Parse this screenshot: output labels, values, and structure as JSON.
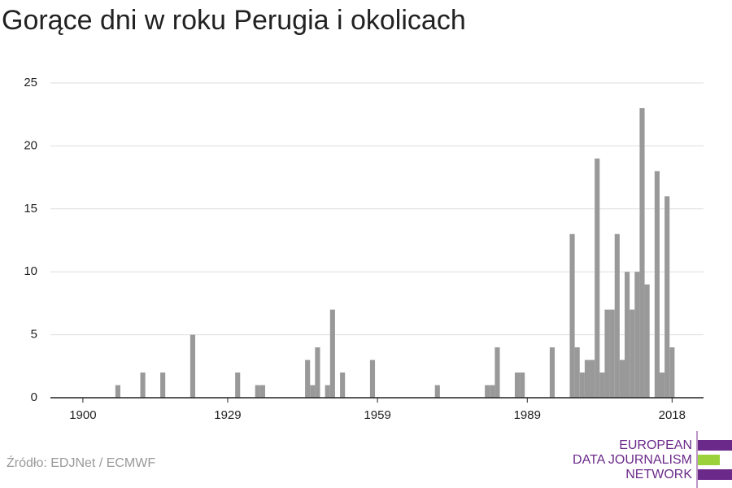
{
  "chart_data": {
    "type": "bar",
    "title": "Gorące dni w roku Perugia i okolicach",
    "source": "Źródło: EDJNet / ECMWF",
    "logo": [
      "EUROPEAN",
      "DATA JOURNALISM",
      "NETWORK"
    ],
    "x": [
      1900,
      1901,
      1902,
      1903,
      1904,
      1905,
      1906,
      1907,
      1908,
      1909,
      1910,
      1911,
      1912,
      1913,
      1914,
      1915,
      1916,
      1917,
      1918,
      1919,
      1920,
      1921,
      1922,
      1923,
      1924,
      1925,
      1926,
      1927,
      1928,
      1929,
      1930,
      1931,
      1932,
      1933,
      1934,
      1935,
      1936,
      1937,
      1938,
      1939,
      1940,
      1941,
      1942,
      1943,
      1944,
      1945,
      1946,
      1947,
      1948,
      1949,
      1950,
      1951,
      1952,
      1953,
      1954,
      1955,
      1956,
      1957,
      1958,
      1959,
      1960,
      1961,
      1962,
      1963,
      1964,
      1965,
      1966,
      1967,
      1968,
      1969,
      1970,
      1971,
      1972,
      1973,
      1974,
      1975,
      1976,
      1977,
      1978,
      1979,
      1980,
      1981,
      1982,
      1983,
      1984,
      1985,
      1986,
      1987,
      1988,
      1989,
      1990,
      1991,
      1992,
      1993,
      1994,
      1995,
      1996,
      1997,
      1998,
      1999,
      2000,
      2001,
      2002,
      2003,
      2004,
      2005,
      2006,
      2007,
      2008,
      2009,
      2010,
      2011,
      2012,
      2013,
      2014,
      2015,
      2016,
      2017,
      2018
    ],
    "values": [
      0,
      0,
      0,
      0,
      0,
      0,
      0,
      1,
      0,
      0,
      0,
      0,
      2,
      0,
      0,
      0,
      2,
      0,
      0,
      0,
      0,
      0,
      5,
      0,
      0,
      0,
      0,
      0,
      0,
      0,
      0,
      2,
      0,
      0,
      0,
      1,
      1,
      0,
      0,
      0,
      0,
      0,
      0,
      0,
      0,
      3,
      1,
      4,
      0,
      1,
      7,
      0,
      2,
      0,
      0,
      0,
      0,
      0,
      3,
      0,
      0,
      0,
      0,
      0,
      0,
      0,
      0,
      0,
      0,
      0,
      0,
      1,
      0,
      0,
      0,
      0,
      0,
      0,
      0,
      0,
      0,
      1,
      1,
      4,
      0,
      0,
      0,
      2,
      2,
      0,
      0,
      0,
      0,
      0,
      4,
      0,
      0,
      0,
      13,
      4,
      2,
      3,
      3,
      19,
      2,
      7,
      7,
      13,
      3,
      10,
      7,
      10,
      23,
      9,
      0,
      18,
      2,
      16,
      4
    ],
    "color": "#999999",
    "xlim": [
      1893.5,
      2024.3
    ],
    "xticks": [
      1900,
      1929,
      1959,
      1989,
      2018
    ],
    "ylim": [
      0,
      25
    ],
    "yticks": [
      0,
      5,
      10,
      15,
      20,
      25
    ],
    "grid": true
  }
}
